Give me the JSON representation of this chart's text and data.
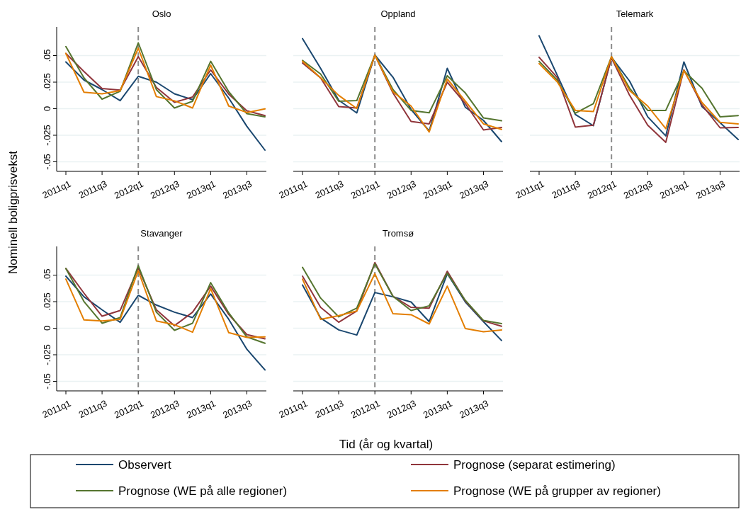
{
  "chart_data": [
    {
      "type": "line",
      "title": "Oslo",
      "ylabel": "Nominell boligprisvekst",
      "legend": "bottom",
      "grid": "y",
      "categories": [
        "2011q1",
        null,
        "2011q3",
        null,
        "2012q1",
        null,
        "2012q3",
        null,
        "2013q1",
        null,
        "2013q3",
        null
      ],
      "ylim": [
        -0.059,
        0.077
      ],
      "yticks": [
        {
          "value": -0.05,
          "label": "-.05"
        },
        {
          "value": -0.025,
          "label": "-.025"
        },
        0,
        {
          "value": 0.025,
          "label": ".025"
        },
        {
          "value": 0.05,
          "label": ".05"
        }
      ],
      "ref_lines": [
        {
          "axis": "x",
          "value": "2012q1",
          "color": "#8c8c8c",
          "line_style": "dashed"
        }
      ],
      "series": [
        {
          "name": "Observert",
          "color": "#1a476f",
          "values": [
            0.044,
            0.027,
            0.018,
            0.0076,
            0.0305,
            0.025,
            0.014,
            0.0085,
            0.033,
            0.01,
            -0.0166,
            -0.039
          ]
        },
        {
          "name": "Prognose (separat estimering)",
          "color": "#90353b",
          "values": [
            0.052,
            0.035,
            0.019,
            0.0175,
            0.049,
            0.02,
            0.006,
            0.011,
            0.0365,
            0.0137,
            -0.002,
            -0.0065
          ]
        },
        {
          "name": "Prognose (WE på alle regioner)",
          "color": "#55752f",
          "values": [
            0.0585,
            0.029,
            0.009,
            0.0164,
            0.062,
            0.018,
            0.0007,
            0.007,
            0.0446,
            0.016,
            -0.0047,
            -0.0076
          ]
        },
        {
          "name": "Prognose (WE på grupper av regioner)",
          "color": "#e37e00",
          "values": [
            0.052,
            0.0155,
            0.014,
            0.017,
            0.057,
            0.0114,
            0.0074,
            0.0007,
            0.041,
            0.0025,
            -0.0036,
            -0.0002
          ]
        }
      ]
    },
    {
      "type": "line",
      "title": "Oppland",
      "grid": "y",
      "tick_labels": "x",
      "categories": [
        "2011q1",
        null,
        "2011q3",
        null,
        "2012q1",
        null,
        "2012q3",
        null,
        "2013q1",
        null,
        "2013q3",
        null
      ],
      "ylim": [
        -0.059,
        0.077
      ],
      "yticks": [
        -0.05,
        -0.025,
        0,
        0.025,
        0.05
      ],
      "ref_lines": [
        {
          "axis": "x",
          "value": "2012q1",
          "color": "#8c8c8c",
          "line_style": "dashed"
        }
      ],
      "series": [
        {
          "color": "#1a476f",
          "values": [
            0.066,
            0.038,
            0.008,
            -0.004,
            0.0505,
            0.0296,
            -0.0007,
            -0.021,
            0.038,
            0.0013,
            -0.011,
            -0.031
          ]
        },
        {
          "color": "#90353b",
          "values": [
            0.043,
            0.029,
            0.002,
            0.0007,
            0.0505,
            0.0148,
            -0.012,
            -0.0143,
            0.025,
            0.0047,
            -0.02,
            -0.0177
          ]
        },
        {
          "color": "#55752f",
          "values": [
            0.0455,
            0.0327,
            0.007,
            0.0076,
            0.0505,
            0.018,
            -0.0016,
            -0.0038,
            0.031,
            0.0148,
            -0.0087,
            -0.0114
          ]
        },
        {
          "color": "#e37e00",
          "values": [
            0.0446,
            0.029,
            0.0126,
            0.0002,
            0.0505,
            0.0159,
            0.0025,
            -0.022,
            0.028,
            0.007,
            -0.0143,
            -0.0195
          ]
        }
      ]
    },
    {
      "type": "line",
      "title": "Telemark",
      "grid": "y",
      "tick_labels": "x",
      "categories": [
        "2011q1",
        null,
        "2011q3",
        null,
        "2012q1",
        null,
        "2012q3",
        null,
        "2013q1",
        null,
        "2013q3",
        null
      ],
      "ylim": [
        -0.059,
        0.077
      ],
      "yticks": [
        -0.05,
        -0.025,
        0,
        0.025,
        0.05
      ],
      "ref_lines": [
        {
          "axis": "x",
          "value": "2012q1",
          "color": "#8c8c8c",
          "line_style": "dashed"
        }
      ],
      "series": [
        {
          "color": "#1a476f",
          "values": [
            0.0686,
            0.0316,
            -0.0054,
            -0.016,
            0.0484,
            0.026,
            -0.0076,
            -0.0256,
            0.044,
            0.002,
            -0.0132,
            -0.029
          ]
        },
        {
          "color": "#90353b",
          "values": [
            0.0484,
            0.0294,
            -0.0173,
            -0.0155,
            0.0478,
            0.0126,
            -0.0155,
            -0.0316,
            0.0366,
            0.0036,
            -0.018,
            -0.0177
          ]
        },
        {
          "color": "#55752f",
          "values": [
            0.0446,
            0.027,
            -0.0043,
            0.0047,
            0.049,
            0.0193,
            -0.0016,
            -0.0016,
            0.0357,
            0.0193,
            -0.0076,
            -0.0065
          ]
        },
        {
          "color": "#e37e00",
          "values": [
            0.0424,
            0.0253,
            -0.0016,
            -0.0027,
            0.049,
            0.017,
            0.0025,
            -0.0188,
            0.036,
            0.0058,
            -0.0128,
            -0.0143
          ]
        }
      ]
    },
    {
      "type": "line",
      "title": "Stavanger",
      "grid": "y",
      "categories": [
        "2011q1",
        null,
        "2011q3",
        null,
        "2012q1",
        null,
        "2012q3",
        null,
        "2013q1",
        null,
        "2013q3",
        null
      ],
      "ylim": [
        -0.059,
        0.077
      ],
      "yticks": [
        {
          "value": -0.05,
          "label": "-.05"
        },
        {
          "value": -0.025,
          "label": "-.025"
        },
        0,
        {
          "value": 0.025,
          "label": ".025"
        },
        {
          "value": 0.05,
          "label": ".05"
        }
      ],
      "ref_lines": [
        {
          "axis": "x",
          "value": "2012q1",
          "color": "#8c8c8c",
          "line_style": "dashed"
        }
      ],
      "series": [
        {
          "color": "#1a476f",
          "values": [
            0.049,
            0.0296,
            0.0173,
            0.0056,
            0.031,
            0.0218,
            0.0151,
            0.01,
            0.0322,
            0.0084,
            -0.0198,
            -0.0393
          ]
        },
        {
          "color": "#90353b",
          "values": [
            0.0562,
            0.033,
            0.0113,
            0.0167,
            0.0567,
            0.0173,
            0.0024,
            0.0151,
            0.0396,
            0.0129,
            -0.006,
            -0.01
          ]
        },
        {
          "color": "#55752f",
          "values": [
            0.0562,
            0.0251,
            0.0047,
            0.01,
            0.0589,
            0.0151,
            -0.002,
            0.0047,
            0.0429,
            0.0144,
            -0.0082,
            -0.0142
          ]
        },
        {
          "color": "#e37e00",
          "values": [
            0.0462,
            0.0078,
            0.0069,
            0.0084,
            0.054,
            0.0069,
            0.0033,
            -0.0038,
            0.0373,
            -0.0042,
            -0.0087,
            -0.0082
          ]
        }
      ]
    },
    {
      "type": "line",
      "title": "Tromsø",
      "xlabel": "Tid (år og kvartal)",
      "grid": "y",
      "tick_labels": "x",
      "categories": [
        "2011q1",
        null,
        "2011q3",
        null,
        "2012q1",
        null,
        "2012q3",
        null,
        "2013q1",
        null,
        "2013q3",
        null
      ],
      "ylim": [
        -0.059,
        0.077
      ],
      "yticks": [
        -0.05,
        -0.025,
        0,
        0.025,
        0.05
      ],
      "ref_lines": [
        {
          "axis": "x",
          "value": "2012q1",
          "color": "#8c8c8c",
          "line_style": "dashed"
        }
      ],
      "series": [
        {
          "color": "#1a476f",
          "values": [
            0.0407,
            0.0096,
            -0.0016,
            -0.0064,
            0.0336,
            0.0296,
            0.0247,
            0.0062,
            0.0513,
            0.0247,
            0.0062,
            -0.0116
          ]
        },
        {
          "color": "#90353b",
          "values": [
            0.049,
            0.0196,
            0.0056,
            0.0162,
            0.0618,
            0.03,
            0.0196,
            0.0189,
            0.0536,
            0.0256,
            0.0069,
            0.0018
          ]
        },
        {
          "color": "#55752f",
          "values": [
            0.0573,
            0.0284,
            0.0107,
            0.0189,
            0.0607,
            0.03,
            0.0167,
            0.0211,
            0.0518,
            0.0262,
            0.0073,
            0.0044
          ]
        },
        {
          "color": "#e37e00",
          "values": [
            0.0462,
            0.0084,
            0.0118,
            0.0162,
            0.0513,
            0.0136,
            0.0127,
            0.004,
            0.0396,
            -0.0004,
            -0.0033,
            -0.0016
          ]
        }
      ]
    }
  ]
}
